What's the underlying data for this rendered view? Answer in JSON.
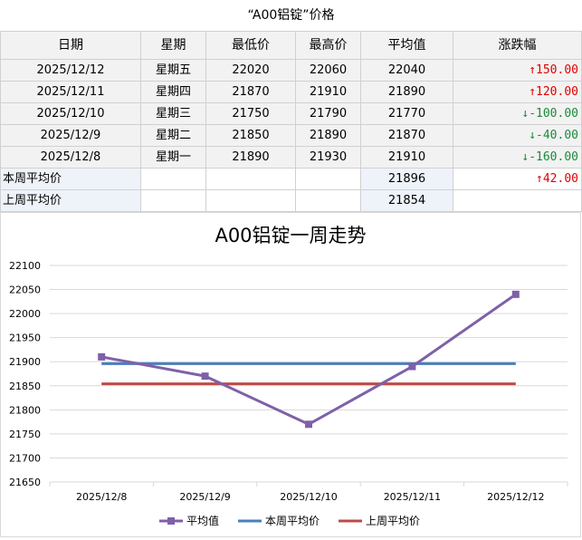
{
  "title": "“A00铝锭”价格",
  "table": {
    "headers": [
      "日期",
      "星期",
      "最低价",
      "最高价",
      "平均值",
      "涨跌幅"
    ],
    "rows": [
      {
        "date": "2025/12/12",
        "weekday": "星期五",
        "low": "22020",
        "high": "22060",
        "avg": "22040",
        "change": "↑150.00",
        "dir": "up"
      },
      {
        "date": "2025/12/11",
        "weekday": "星期四",
        "low": "21870",
        "high": "21910",
        "avg": "21890",
        "change": "↑120.00",
        "dir": "up"
      },
      {
        "date": "2025/12/10",
        "weekday": "星期三",
        "low": "21750",
        "high": "21790",
        "avg": "21770",
        "change": "↓-100.00",
        "dir": "down"
      },
      {
        "date": "2025/12/9",
        "weekday": "星期二",
        "low": "21850",
        "high": "21890",
        "avg": "21870",
        "change": "↓-40.00",
        "dir": "down"
      },
      {
        "date": "2025/12/8",
        "weekday": "星期一",
        "low": "21890",
        "high": "21930",
        "avg": "21910",
        "change": "↓-160.00",
        "dir": "down"
      }
    ],
    "this_week": {
      "label": "本周平均价",
      "avg": "21896",
      "change": "↑42.00"
    },
    "last_week": {
      "label": "上周平均价",
      "avg": "21854"
    }
  },
  "colors": {
    "up": "#e00000",
    "down": "#1a8a3a",
    "series_avg": "#7f60a8",
    "series_this_week": "#4a7ebb",
    "series_last_week": "#be4b48"
  },
  "chart_data": {
    "type": "line",
    "title": "A00铝锭一周走势",
    "categories": [
      "2025/12/8",
      "2025/12/9",
      "2025/12/10",
      "2025/12/11",
      "2025/12/12"
    ],
    "ylim": [
      21650,
      22100
    ],
    "yticks": [
      21650,
      21700,
      21750,
      21800,
      21850,
      21900,
      21950,
      22000,
      22050,
      22100
    ],
    "grid": true,
    "legend": "bottom",
    "series": [
      {
        "name": "平均值",
        "values": [
          21910,
          21870,
          21770,
          21890,
          22040
        ],
        "markers": true
      },
      {
        "name": "本周平均价",
        "values": [
          21896,
          21896,
          21896,
          21896,
          21896
        ],
        "markers": false
      },
      {
        "name": "上周平均价",
        "values": [
          21854,
          21854,
          21854,
          21854,
          21854
        ],
        "markers": false
      }
    ]
  }
}
